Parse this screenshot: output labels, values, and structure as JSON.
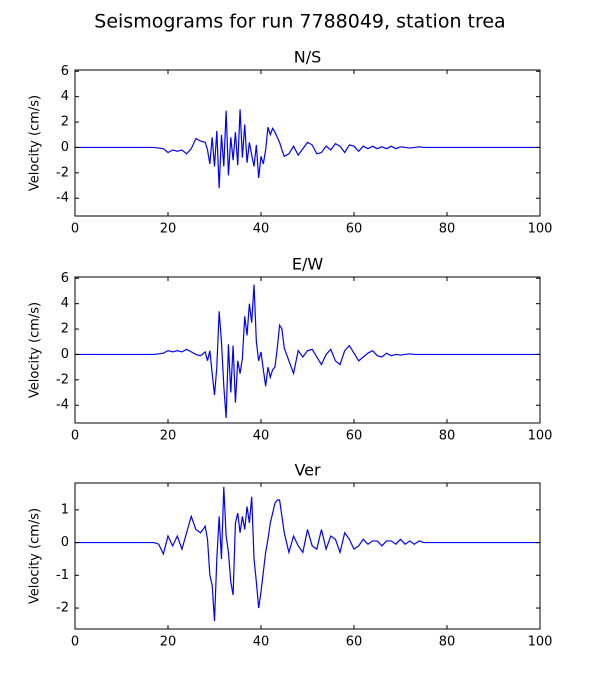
{
  "title": "Seismograms for run 7788049, station trea",
  "chart_data": [
    {
      "type": "line",
      "title": "N/S",
      "ylabel": "Velocity (cm/s)",
      "xlim": [
        0,
        100
      ],
      "xticks": [
        0,
        20,
        40,
        60,
        80,
        100
      ],
      "ylim": [
        -5.4,
        6.1
      ],
      "yticks": [
        -4,
        -2,
        0,
        2,
        4,
        6
      ],
      "x": [
        0,
        17,
        18,
        19,
        20,
        21,
        22,
        23,
        24,
        25,
        26,
        27,
        28,
        28.5,
        29,
        29.5,
        30,
        30.5,
        31,
        31.5,
        32,
        32.5,
        33,
        33.5,
        34,
        34.5,
        35,
        35.5,
        36,
        36.5,
        37,
        37.5,
        38,
        38.5,
        39,
        39.5,
        40,
        40.5,
        41,
        41.5,
        42,
        42.5,
        43,
        43.5,
        44,
        44.5,
        45,
        46,
        47,
        48,
        49,
        50,
        51,
        52,
        53,
        54,
        55,
        56,
        57,
        58,
        59,
        60,
        61,
        62,
        63,
        64,
        65,
        66,
        67,
        68,
        69,
        70,
        71,
        72,
        73,
        74,
        75,
        80,
        100
      ],
      "series": [
        {
          "color": "#0000ff",
          "values": [
            0,
            0,
            -0.05,
            -0.1,
            -0.4,
            -0.2,
            -0.3,
            -0.2,
            -0.5,
            -0.1,
            0.7,
            0.5,
            0.4,
            -0.2,
            -1.3,
            0.8,
            -1.5,
            1.3,
            -3.2,
            1.0,
            -1.5,
            2.9,
            -2.2,
            0.8,
            -1.0,
            1.2,
            -1.4,
            3.0,
            -0.8,
            1.8,
            -1.2,
            0.4,
            -0.6,
            -1.5,
            0.2,
            -2.4,
            -0.7,
            -1.3,
            -0.2,
            1.6,
            1.0,
            1.5,
            1.2,
            0.8,
            0.4,
            -0.2,
            -0.7,
            -0.5,
            0.1,
            -0.6,
            -0.1,
            0.4,
            0.2,
            -0.5,
            -0.4,
            0.1,
            -0.2,
            0.3,
            0.1,
            -0.4,
            0.2,
            0.1,
            -0.3,
            0.1,
            -0.1,
            0.1,
            -0.1,
            0.05,
            -0.1,
            0.1,
            -0.1,
            0.05,
            0,
            -0.05,
            0,
            0.05,
            0,
            0,
            0
          ]
        }
      ]
    },
    {
      "type": "line",
      "title": "E/W",
      "ylabel": "Velocity (cm/s)",
      "xlim": [
        0,
        100
      ],
      "xticks": [
        0,
        20,
        40,
        60,
        80,
        100
      ],
      "ylim": [
        -5.4,
        6.1
      ],
      "yticks": [
        -4,
        -2,
        0,
        2,
        4,
        6
      ],
      "x": [
        0,
        17,
        18,
        19,
        20,
        21,
        22,
        23,
        24,
        25,
        26,
        27,
        28,
        28.5,
        29,
        29.5,
        30,
        30.5,
        31,
        31.5,
        32,
        32.5,
        33,
        33.5,
        34,
        34.5,
        35,
        35.5,
        36,
        36.5,
        37,
        37.5,
        38,
        38.5,
        39,
        39.5,
        40,
        40.5,
        41,
        41.5,
        42,
        42.5,
        43,
        43.5,
        44,
        44.5,
        45,
        46,
        47,
        48,
        49,
        50,
        51,
        52,
        53,
        54,
        55,
        56,
        57,
        58,
        59,
        60,
        61,
        62,
        63,
        64,
        65,
        66,
        67,
        68,
        69,
        70,
        71,
        72,
        73,
        74,
        75,
        80,
        100
      ],
      "series": [
        {
          "color": "#0000ff",
          "values": [
            0,
            0,
            0.05,
            0.1,
            0.3,
            0.2,
            0.3,
            0.2,
            0.4,
            0.2,
            0,
            -0.1,
            0.2,
            -0.5,
            0.3,
            -1.5,
            -3.2,
            -1.0,
            3.4,
            1.0,
            -2.5,
            -5.0,
            0.8,
            -3.0,
            0.7,
            -3.8,
            -0.5,
            -1.5,
            -0.3,
            3.0,
            1.5,
            4.0,
            2.5,
            5.5,
            1.0,
            -0.5,
            0.2,
            -1.2,
            -2.5,
            -1.0,
            -1.8,
            -1.2,
            -1.0,
            0.5,
            2.3,
            2.0,
            0.5,
            -0.5,
            -1.5,
            0.3,
            -0.2,
            0.3,
            0.4,
            -0.2,
            -0.8,
            0,
            0.4,
            -0.5,
            -0.8,
            0.3,
            0.7,
            0.1,
            -0.5,
            -0.2,
            0.1,
            0.3,
            -0.1,
            -0.2,
            0.1,
            -0.1,
            0,
            -0.05,
            0,
            0.05,
            0,
            0,
            0,
            0,
            0
          ]
        }
      ]
    },
    {
      "type": "line",
      "title": "Ver",
      "ylabel": "Velocity (cm/s)",
      "xlim": [
        0,
        100
      ],
      "xticks": [
        0,
        20,
        40,
        60,
        80,
        100
      ],
      "ylim": [
        -2.64,
        1.82
      ],
      "yticks": [
        -2,
        -1,
        0,
        1
      ],
      "x": [
        0,
        17,
        18,
        19,
        20,
        21,
        22,
        23,
        24,
        25,
        26,
        27,
        28,
        28.5,
        29,
        29.5,
        30,
        30.5,
        31,
        31.5,
        32,
        32.5,
        33,
        33.5,
        34,
        34.5,
        35,
        35.5,
        36,
        36.5,
        37,
        37.5,
        38,
        38.5,
        39,
        39.5,
        40,
        40.5,
        41,
        41.5,
        42,
        42.5,
        43,
        43.5,
        44,
        44.5,
        45,
        46,
        47,
        48,
        49,
        50,
        51,
        52,
        53,
        54,
        55,
        56,
        57,
        58,
        59,
        60,
        61,
        62,
        63,
        64,
        65,
        66,
        67,
        68,
        69,
        70,
        71,
        72,
        73,
        74,
        75,
        80,
        100
      ],
      "series": [
        {
          "color": "#0000ff",
          "values": [
            0,
            0,
            -0.05,
            -0.35,
            0.2,
            -0.1,
            0.2,
            -0.2,
            0.3,
            0.8,
            0.4,
            0.3,
            0.5,
            0.1,
            -1.0,
            -1.3,
            -2.4,
            -0.5,
            0.8,
            -0.5,
            1.7,
            0.2,
            -0.3,
            -1.2,
            -1.6,
            0.6,
            0.9,
            0.3,
            0.8,
            0.4,
            1.1,
            0.6,
            1.4,
            -0.5,
            -1.2,
            -2.0,
            -1.5,
            -0.9,
            -0.3,
            0.1,
            0.6,
            0.9,
            1.2,
            1.3,
            1.3,
            0.8,
            0.3,
            -0.3,
            0.2,
            -0.1,
            -0.3,
            0.4,
            -0.1,
            -0.2,
            0.4,
            -0.2,
            0.2,
            0.1,
            -0.3,
            0.3,
            0.1,
            -0.2,
            -0.1,
            0.1,
            -0.05,
            0.05,
            0.05,
            -0.1,
            0.05,
            0.05,
            -0.05,
            0.1,
            -0.05,
            0.05,
            -0.05,
            0.05,
            0,
            0,
            0
          ]
        }
      ]
    }
  ]
}
